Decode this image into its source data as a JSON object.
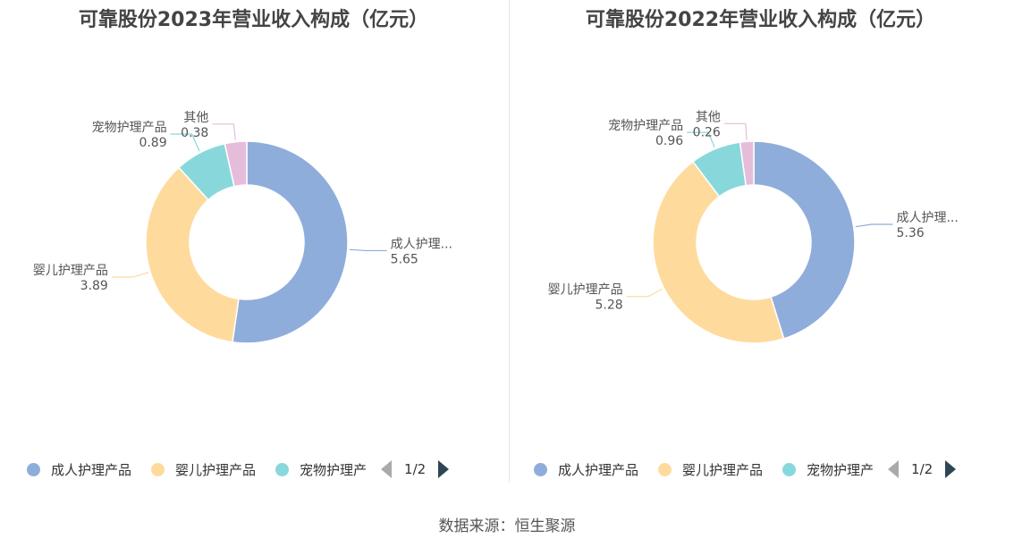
{
  "colors": [
    "#8faddb",
    "#fedb9d",
    "#88d8db",
    "#e6bcdb"
  ],
  "panels": [
    {
      "title": "可靠股份2023年营业收入构成（亿元）",
      "legend": {
        "items": [
          "成人护理产品",
          "婴儿护理产品",
          "宠物护理产"
        ],
        "page": "1/2"
      }
    },
    {
      "title": "可靠股份2022年营业收入构成（亿元）",
      "legend": {
        "items": [
          "成人护理产品",
          "婴儿护理产品",
          "宠物护理产"
        ],
        "page": "1/2"
      }
    }
  ],
  "source": "数据来源：恒生聚源",
  "chart_data": [
    {
      "type": "pie",
      "title": "可靠股份2023年营业收入构成（亿元）",
      "labels": [
        "成人护理...",
        "婴儿护理产品",
        "宠物护理产品",
        "其他"
      ],
      "values": [
        5.65,
        3.89,
        0.89,
        0.38
      ],
      "legend_position": "bottom"
    },
    {
      "type": "pie",
      "title": "可靠股份2022年营业收入构成（亿元）",
      "labels": [
        "成人护理...",
        "婴儿护理产品",
        "宠物护理产品",
        "其他"
      ],
      "values": [
        5.36,
        5.28,
        0.96,
        0.26
      ],
      "legend_position": "bottom"
    }
  ]
}
